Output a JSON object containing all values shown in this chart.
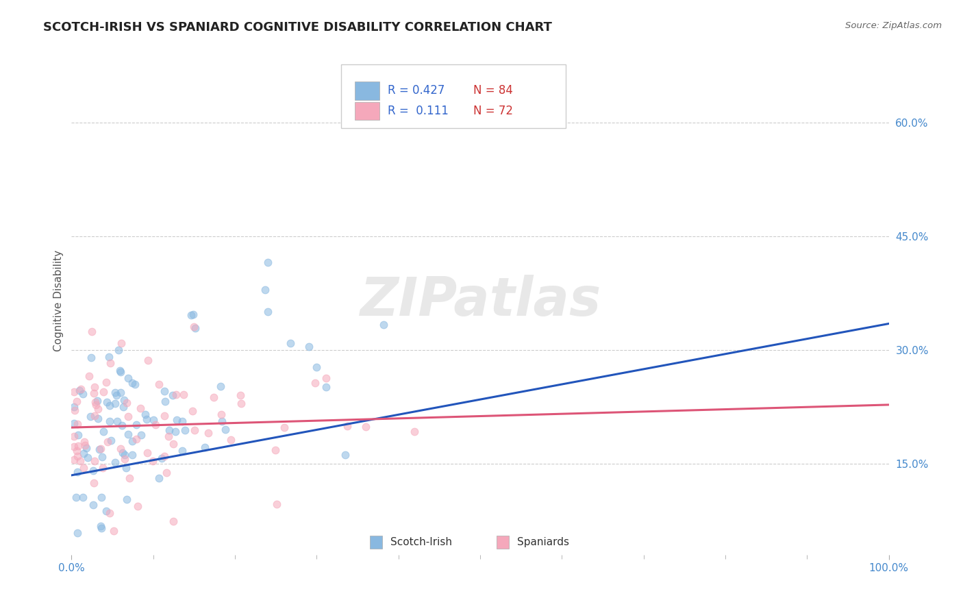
{
  "title": "SCOTCH-IRISH VS SPANIARD COGNITIVE DISABILITY CORRELATION CHART",
  "source": "Source: ZipAtlas.com",
  "ylabel": "Cognitive Disability",
  "y_tick_labels": [
    "15.0%",
    "30.0%",
    "45.0%",
    "60.0%"
  ],
  "y_tick_values": [
    0.15,
    0.3,
    0.45,
    0.6
  ],
  "xmin": 0.0,
  "xmax": 1.0,
  "ymin": 0.03,
  "ymax": 0.7,
  "scotch_irish_R": 0.427,
  "scotch_irish_N": 84,
  "spaniard_R": 0.111,
  "spaniard_N": 72,
  "blue_color": "#89b8e0",
  "pink_color": "#f5a8bb",
  "blue_line_color": "#2255bb",
  "pink_line_color": "#dd5577",
  "blue_line_start": 0.135,
  "blue_line_end": 0.335,
  "pink_line_start": 0.198,
  "pink_line_end": 0.228,
  "watermark": "ZIPatlas",
  "background_color": "#ffffff",
  "grid_color": "#cccccc",
  "title_fontsize": 13,
  "axis_label_fontsize": 11,
  "tick_fontsize": 11,
  "tick_color": "#4488cc",
  "legend_text_color": "#3366cc",
  "legend_N_color": "#cc3333"
}
